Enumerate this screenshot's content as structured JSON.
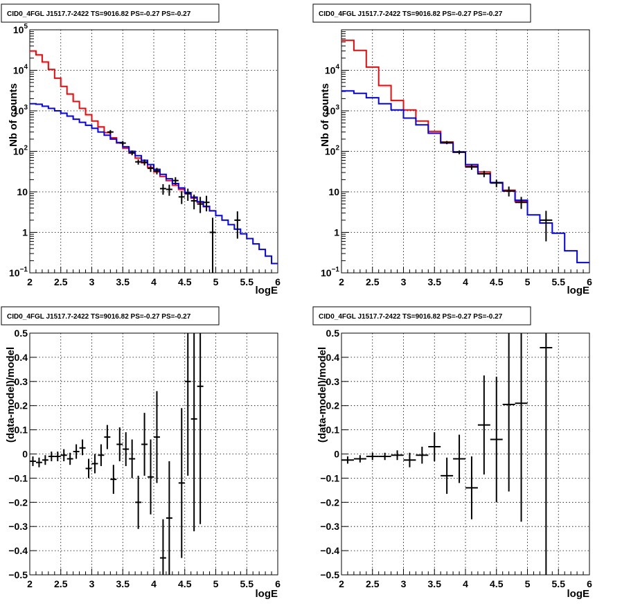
{
  "chart_data": [
    {
      "type": "line",
      "title": "CID0_4FGL J1517.7-2422 TS=9016.82 PS=-0.27 PS=-0.27",
      "xlabel": "logE",
      "ylabel": "Nb of counts",
      "log_y": true,
      "grid": true,
      "xlim": [
        2,
        6
      ],
      "ylim": [
        0.1,
        100000
      ],
      "xticks": [
        "2",
        "2.5",
        "3",
        "3.5",
        "4",
        "4.5",
        "5",
        "5.5",
        "6"
      ],
      "yticks": [
        {
          "value": 0.1,
          "base": "10",
          "exp": "−1"
        },
        {
          "value": 1,
          "base": "1",
          "exp": ""
        },
        {
          "value": 10,
          "base": "10",
          "exp": ""
        },
        {
          "value": 100,
          "base": "10",
          "exp": "2"
        },
        {
          "value": 1000,
          "base": "10",
          "exp": "3"
        },
        {
          "value": 10000,
          "base": "10",
          "exp": "4"
        },
        {
          "value": 100000,
          "base": "10",
          "exp": "5"
        }
      ],
      "bin_edges": [
        2.0,
        2.1,
        2.2,
        2.3,
        2.4,
        2.5,
        2.6,
        2.7,
        2.8,
        2.9,
        3.0,
        3.1,
        3.2,
        3.3,
        3.4,
        3.5,
        3.6,
        3.7,
        3.8,
        3.9,
        4.0,
        4.1,
        4.2,
        4.3,
        4.4,
        4.5,
        4.6,
        4.7,
        4.8,
        4.9,
        5.0,
        5.1,
        5.2,
        5.3,
        5.4,
        5.5,
        5.6,
        5.7,
        5.8,
        5.9,
        6.0
      ],
      "series": [
        {
          "color": "#ff0000",
          "values": [
            30000,
            24000,
            16000,
            10500,
            6400,
            4000,
            2600,
            1700,
            1150,
            800,
            560,
            400,
            290,
            215,
            160,
            120,
            90,
            68,
            52,
            40,
            31,
            24,
            19,
            14.5,
            11.5,
            9,
            7,
            5.5,
            4.3,
            3.4
          ]
        },
        {
          "color": "#0000ff",
          "values": [
            1500,
            1450,
            1300,
            1150,
            1000,
            870,
            740,
            620,
            520,
            440,
            370,
            300,
            250,
            200,
            165,
            130,
            100,
            78,
            60,
            47,
            36,
            27,
            21,
            16,
            12.5,
            9.6,
            7.4,
            5.7,
            4.4,
            3.4,
            2.6,
            2.0,
            1.55,
            1.2,
            0.92,
            0.7,
            0.52,
            0.38,
            0.26,
            0.17
          ]
        }
      ],
      "points": [
        {
          "x": 3.3,
          "xe": 0.05,
          "y": 300,
          "ylo": 265,
          "yhi": 335
        },
        {
          "x": 3.5,
          "xe": 0.05,
          "y": 160,
          "ylo": 140,
          "yhi": 180
        },
        {
          "x": 3.65,
          "xe": 0.05,
          "y": 92,
          "ylo": 80,
          "yhi": 105
        },
        {
          "x": 3.75,
          "xe": 0.05,
          "y": 55,
          "ylo": 47,
          "yhi": 63
        },
        {
          "x": 3.85,
          "xe": 0.05,
          "y": 54,
          "ylo": 45,
          "yhi": 63
        },
        {
          "x": 3.95,
          "xe": 0.05,
          "y": 38,
          "ylo": 31,
          "yhi": 45
        },
        {
          "x": 4.05,
          "xe": 0.05,
          "y": 33,
          "ylo": 27,
          "yhi": 39
        },
        {
          "x": 4.15,
          "xe": 0.05,
          "y": 12,
          "ylo": 8.5,
          "yhi": 15.5
        },
        {
          "x": 4.25,
          "xe": 0.05,
          "y": 11.5,
          "ylo": 8,
          "yhi": 15
        },
        {
          "x": 4.35,
          "xe": 0.05,
          "y": 19,
          "ylo": 15,
          "yhi": 23
        },
        {
          "x": 4.45,
          "xe": 0.05,
          "y": 7.5,
          "ylo": 5,
          "yhi": 10.5
        },
        {
          "x": 4.55,
          "xe": 0.05,
          "y": 9,
          "ylo": 6,
          "yhi": 12
        },
        {
          "x": 4.65,
          "xe": 0.05,
          "y": 6,
          "ylo": 3.7,
          "yhi": 8.5
        },
        {
          "x": 4.75,
          "xe": 0.05,
          "y": 5,
          "ylo": 3,
          "yhi": 7.5
        },
        {
          "x": 4.85,
          "xe": 0.05,
          "y": 5.5,
          "ylo": 3.3,
          "yhi": 8
        },
        {
          "x": 4.95,
          "xe": 0.05,
          "y": 1,
          "ylo": 0.1,
          "yhi": 2.3
        },
        {
          "x": 5.35,
          "xe": 0.05,
          "y": 2,
          "ylo": 0.7,
          "yhi": 3.3
        }
      ]
    },
    {
      "type": "line",
      "title": "CID0_4FGL J1517.7-2422 TS=9016.82 PS=-0.27 PS=-0.27",
      "xlabel": "logE",
      "ylabel": "Nb of counts",
      "log_y": true,
      "grid": true,
      "xlim": [
        2,
        6
      ],
      "ylim": [
        0.1,
        100000
      ],
      "xticks": [
        "2",
        "2.5",
        "3",
        "3.5",
        "4",
        "4.5",
        "5",
        "5.5",
        "6"
      ],
      "yticks": [
        {
          "value": 0.1,
          "base": "10",
          "exp": "−1"
        },
        {
          "value": 1,
          "base": "1",
          "exp": ""
        },
        {
          "value": 10,
          "base": "10",
          "exp": ""
        },
        {
          "value": 100,
          "base": "10",
          "exp": "2"
        },
        {
          "value": 1000,
          "base": "10",
          "exp": "3"
        },
        {
          "value": 10000,
          "base": "10",
          "exp": "4"
        }
      ],
      "bin_edges": [
        2.0,
        2.2,
        2.4,
        2.6,
        2.8,
        3.0,
        3.2,
        3.4,
        3.6,
        3.8,
        4.0,
        4.2,
        4.4,
        4.6,
        4.8,
        5.0,
        5.2,
        5.4,
        5.6,
        5.8,
        6.0
      ],
      "series": [
        {
          "color": "#ff0000",
          "values": [
            55000,
            31000,
            12000,
            4200,
            1800,
            1050,
            560,
            310,
            170,
            95,
            43,
            31,
            17,
            11,
            5.8
          ]
        },
        {
          "color": "#0000ff",
          "values": [
            3100,
            2700,
            2100,
            1500,
            1050,
            660,
            450,
            280,
            160,
            97,
            47,
            28,
            17,
            10.5,
            6.2,
            2.7,
            1.7,
            0.95,
            0.35,
            0.18
          ]
        }
      ],
      "points": [
        {
          "x": 3.7,
          "xe": 0.1,
          "y": 165,
          "ylo": 150,
          "yhi": 180
        },
        {
          "x": 3.9,
          "xe": 0.1,
          "y": 95,
          "ylo": 85,
          "yhi": 105
        },
        {
          "x": 4.1,
          "xe": 0.1,
          "y": 41,
          "ylo": 35,
          "yhi": 47
        },
        {
          "x": 4.3,
          "xe": 0.1,
          "y": 28,
          "ylo": 23,
          "yhi": 33
        },
        {
          "x": 4.5,
          "xe": 0.1,
          "y": 16.5,
          "ylo": 13,
          "yhi": 20
        },
        {
          "x": 4.7,
          "xe": 0.1,
          "y": 10.5,
          "ylo": 7.7,
          "yhi": 13.5
        },
        {
          "x": 4.9,
          "xe": 0.1,
          "y": 5.5,
          "ylo": 3.8,
          "yhi": 7.5
        },
        {
          "x": 5.3,
          "xe": 0.1,
          "y": 2,
          "ylo": 0.6,
          "yhi": 3.4
        }
      ]
    },
    {
      "type": "scatter",
      "title": "CID0_4FGL J1517.7-2422 TS=9016.82 PS=-0.27 PS=-0.27",
      "xlabel": "logE",
      "ylabel": "(data-model)/model",
      "log_y": false,
      "grid": true,
      "xlim": [
        2,
        6
      ],
      "ylim": [
        -0.5,
        0.5
      ],
      "xticks": [
        "2",
        "2.5",
        "3",
        "3.5",
        "4",
        "4.5",
        "5",
        "5.5",
        "6"
      ],
      "yticks": [
        "−0.5",
        "−0.4",
        "−0.3",
        "−0.2",
        "−0.1",
        "0",
        "0.1",
        "0.2",
        "0.3",
        "0.4",
        "0.5"
      ],
      "points": [
        {
          "x": 2.05,
          "xe": 0.05,
          "y": -0.03,
          "ylo": -0.05,
          "yhi": -0.01
        },
        {
          "x": 2.15,
          "xe": 0.05,
          "y": -0.035,
          "ylo": -0.055,
          "yhi": -0.015
        },
        {
          "x": 2.25,
          "xe": 0.05,
          "y": -0.025,
          "ylo": -0.045,
          "yhi": -0.005
        },
        {
          "x": 2.35,
          "xe": 0.05,
          "y": -0.01,
          "ylo": -0.03,
          "yhi": 0.01
        },
        {
          "x": 2.45,
          "xe": 0.05,
          "y": -0.01,
          "ylo": -0.03,
          "yhi": 0.01
        },
        {
          "x": 2.55,
          "xe": 0.05,
          "y": -0.005,
          "ylo": -0.03,
          "yhi": 0.02
        },
        {
          "x": 2.65,
          "xe": 0.05,
          "y": -0.02,
          "ylo": -0.045,
          "yhi": 0.005
        },
        {
          "x": 2.75,
          "xe": 0.05,
          "y": 0.01,
          "ylo": -0.02,
          "yhi": 0.04
        },
        {
          "x": 2.85,
          "xe": 0.05,
          "y": 0.025,
          "ylo": -0.005,
          "yhi": 0.06
        },
        {
          "x": 2.95,
          "xe": 0.05,
          "y": -0.06,
          "ylo": -0.1,
          "yhi": -0.02
        },
        {
          "x": 3.05,
          "xe": 0.05,
          "y": -0.04,
          "ylo": -0.08,
          "yhi": 0.0
        },
        {
          "x": 3.15,
          "xe": 0.05,
          "y": -0.005,
          "ylo": -0.05,
          "yhi": 0.04
        },
        {
          "x": 3.25,
          "xe": 0.05,
          "y": 0.07,
          "ylo": 0.02,
          "yhi": 0.12
        },
        {
          "x": 3.35,
          "xe": 0.05,
          "y": -0.105,
          "ylo": -0.165,
          "yhi": -0.045
        },
        {
          "x": 3.45,
          "xe": 0.05,
          "y": 0.04,
          "ylo": -0.03,
          "yhi": 0.11
        },
        {
          "x": 3.55,
          "xe": 0.05,
          "y": 0.02,
          "ylo": -0.05,
          "yhi": 0.09
        },
        {
          "x": 3.65,
          "xe": 0.05,
          "y": -0.02,
          "ylo": -0.1,
          "yhi": 0.06
        },
        {
          "x": 3.75,
          "xe": 0.05,
          "y": -0.2,
          "ylo": -0.31,
          "yhi": -0.09
        },
        {
          "x": 3.85,
          "xe": 0.05,
          "y": 0.04,
          "ylo": -0.09,
          "yhi": 0.17
        },
        {
          "x": 3.95,
          "xe": 0.05,
          "y": -0.095,
          "ylo": -0.25,
          "yhi": 0.06
        },
        {
          "x": 4.05,
          "xe": 0.05,
          "y": 0.07,
          "ylo": -0.12,
          "yhi": 0.26
        },
        {
          "x": 4.15,
          "xe": 0.05,
          "y": -0.43,
          "ylo": -0.5,
          "yhi": -0.27
        },
        {
          "x": 4.25,
          "xe": 0.05,
          "y": -0.265,
          "ylo": -0.5,
          "yhi": -0.03
        },
        {
          "x": 4.45,
          "xe": 0.05,
          "y": -0.12,
          "ylo": -0.43,
          "yhi": 0.19
        },
        {
          "x": 4.55,
          "xe": 0.05,
          "y": 0.3,
          "ylo": -0.09,
          "yhi": 0.5
        },
        {
          "x": 4.65,
          "xe": 0.05,
          "y": 0.145,
          "ylo": -0.32,
          "yhi": 0.5
        },
        {
          "x": 4.75,
          "xe": 0.05,
          "y": 0.28,
          "ylo": -0.29,
          "yhi": 0.5
        }
      ]
    },
    {
      "type": "scatter",
      "title": "CID0_4FGL J1517.7-2422 TS=9016.82 PS=-0.27 PS=-0.27",
      "xlabel": "logE",
      "ylabel": "(data-model)/model",
      "log_y": false,
      "grid": true,
      "xlim": [
        2,
        6
      ],
      "ylim": [
        -0.5,
        0.5
      ],
      "xticks": [
        "2",
        "2.5",
        "3",
        "3.5",
        "4",
        "4.5",
        "5",
        "5.5",
        "6"
      ],
      "yticks": [
        "−0.5",
        "−0.4",
        "−0.3",
        "−0.2",
        "−0.1",
        "0",
        "0.1",
        "0.2",
        "0.3",
        "0.4",
        "0.5"
      ],
      "points": [
        {
          "x": 2.1,
          "xe": 0.1,
          "y": -0.025,
          "ylo": -0.04,
          "yhi": -0.01
        },
        {
          "x": 2.3,
          "xe": 0.1,
          "y": -0.02,
          "ylo": -0.035,
          "yhi": -0.005
        },
        {
          "x": 2.5,
          "xe": 0.1,
          "y": -0.01,
          "ylo": -0.025,
          "yhi": 0.005
        },
        {
          "x": 2.7,
          "xe": 0.1,
          "y": -0.01,
          "ylo": -0.025,
          "yhi": 0.005
        },
        {
          "x": 2.9,
          "xe": 0.1,
          "y": -0.005,
          "ylo": -0.025,
          "yhi": 0.015
        },
        {
          "x": 3.1,
          "xe": 0.1,
          "y": -0.025,
          "ylo": -0.055,
          "yhi": 0.005
        },
        {
          "x": 3.3,
          "xe": 0.1,
          "y": -0.005,
          "ylo": -0.04,
          "yhi": 0.03
        },
        {
          "x": 3.5,
          "xe": 0.1,
          "y": 0.03,
          "ylo": -0.03,
          "yhi": 0.09
        },
        {
          "x": 3.7,
          "xe": 0.1,
          "y": -0.09,
          "ylo": -0.165,
          "yhi": -0.015
        },
        {
          "x": 3.9,
          "xe": 0.1,
          "y": -0.02,
          "ylo": -0.12,
          "yhi": 0.08
        },
        {
          "x": 4.1,
          "xe": 0.1,
          "y": -0.14,
          "ylo": -0.27,
          "yhi": -0.01
        },
        {
          "x": 4.3,
          "xe": 0.1,
          "y": 0.12,
          "ylo": -0.085,
          "yhi": 0.325
        },
        {
          "x": 4.5,
          "xe": 0.1,
          "y": 0.06,
          "ylo": -0.2,
          "yhi": 0.32
        },
        {
          "x": 4.7,
          "xe": 0.1,
          "y": 0.205,
          "ylo": -0.155,
          "yhi": 0.5
        },
        {
          "x": 4.9,
          "xe": 0.1,
          "y": 0.21,
          "ylo": -0.28,
          "yhi": 0.5
        },
        {
          "x": 5.3,
          "xe": 0.1,
          "y": 0.44,
          "ylo": -0.5,
          "yhi": 0.5
        }
      ]
    }
  ]
}
